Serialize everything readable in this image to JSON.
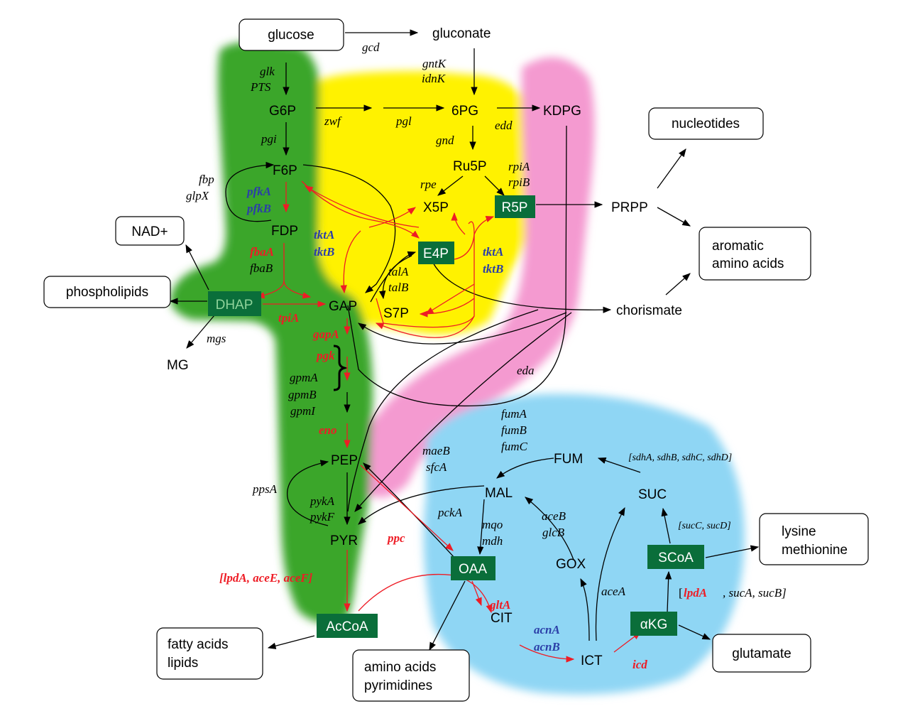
{
  "colors": {
    "green_region": "#3aa62a",
    "yellow_region": "#fff200",
    "pink_region": "#f49ad0",
    "blue_region": "#8fd6f4",
    "metabolite_box": "#0a6e3a",
    "red_gene": "#ee1c25",
    "blue_gene": "#2b3fa8"
  },
  "boxes": {
    "glucose": "glucose",
    "nucleotides": "nucleotides",
    "nad": "NAD+",
    "phospholipids": "phospholipids",
    "aromatic_1": "aromatic",
    "aromatic_2": "amino acids",
    "lysine_1": "lysine",
    "lysine_2": "methionine",
    "fatty_1": "fatty acids",
    "fatty_2": "lipids",
    "aa_pyr_1": "amino acids",
    "aa_pyr_2": "pyrimidines",
    "glutamate": "glutamate"
  },
  "metabolites": {
    "gluconate": "gluconate",
    "g6p": "G6P",
    "pg6": "6PG",
    "kdpg": "KDPG",
    "f6p": "F6P",
    "ru5p": "Ru5P",
    "x5p": "X5P",
    "prpp": "PRPP",
    "fdp": "FDP",
    "gap": "GAP",
    "s7p": "S7P",
    "chorismate": "chorismate",
    "mg": "MG",
    "pep": "PEP",
    "pyr": "PYR",
    "fum": "FUM",
    "mal": "MAL",
    "suc": "SUC",
    "gox": "GOX",
    "cit": "CIT",
    "ict": "ICT"
  },
  "green_boxes": {
    "r5p": "R5P",
    "e4p": "E4P",
    "dhap": "DHAP",
    "oaa": "OAA",
    "scoa": "SCoA",
    "akg": "αKG",
    "accoa": "AcCoA"
  },
  "genes": {
    "gcd": "gcd",
    "glk": "glk",
    "pts": "PTS",
    "gntk": "gntK",
    "idnk": "idnK",
    "zwf": "zwf",
    "pgl": "pgl",
    "edd": "edd",
    "pgi": "pgi",
    "gnd": "gnd",
    "rpia": "rpiA",
    "rpib": "rpiB",
    "rpe": "rpe",
    "fbp": "fbp",
    "glpx": "glpX",
    "fbab": "fbaB",
    "tala": "talA",
    "talb": "talB",
    "mgs": "mgs",
    "gpma": "gpmA",
    "gpmb": "gpmB",
    "gpmi": "gpmI",
    "eda": "eda",
    "fuma": "fumA",
    "fumb": "fumB",
    "fumc": "fumC",
    "maeb": "maeB",
    "sfca": "sfcA",
    "ppsa": "ppsA",
    "pyka": "pykA",
    "pykf": "pykF",
    "pcka": "pckA",
    "mqo": "mqo",
    "mdh": "mdh",
    "aceb": "aceB",
    "glcb": "glcB",
    "acea": "aceA",
    "sdh": "[sdhA, sdhB, sdhC, sdhD]",
    "suc_cd": "[sucC, sucD]",
    "sucab": ", sucA, sucB]"
  },
  "genes_red": {
    "fbaa": "fbaA",
    "tpia": "tpiA",
    "gapa": "gapA",
    "pgk": "pgk",
    "eno": "eno",
    "ppc": "ppc",
    "pdh": "[lpdA, aceE, aceF]",
    "glta": "gltA",
    "icd": "icd",
    "lpda": "lpdA"
  },
  "genes_blue": {
    "pfka": "pfkA",
    "pfkb": "pfkB",
    "tkta1": "tktA",
    "tktb1": "tktB",
    "tkta2": "tktA",
    "tktb2": "tktB",
    "acna": "acnA",
    "acnb": "acnB"
  }
}
